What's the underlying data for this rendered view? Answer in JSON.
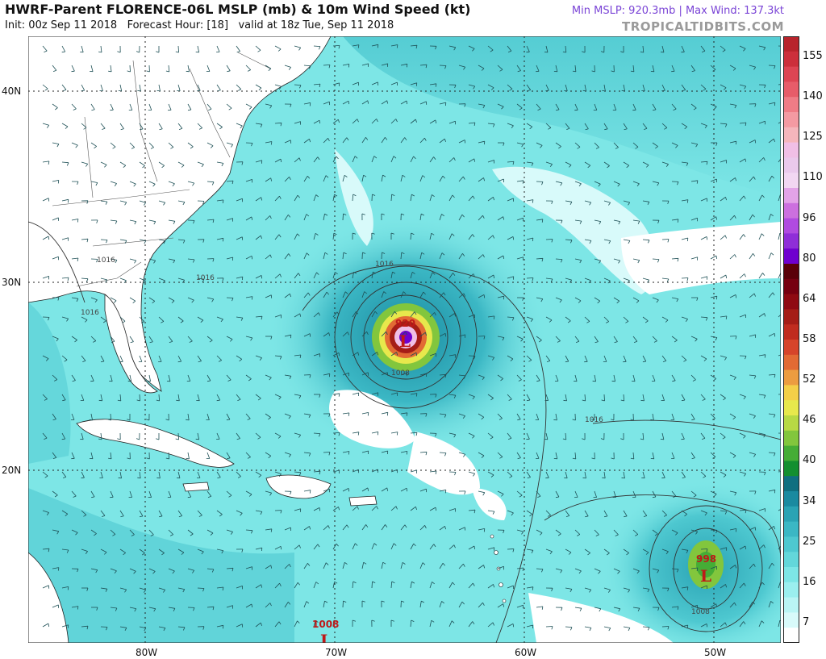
{
  "header": {
    "title": "HWRF-Parent FLORENCE-06L MSLP (mb) & 10m Wind Speed (kt)",
    "init": "Init: 00z Sep 11 2018",
    "forecast_hour": "Forecast Hour: [18]",
    "valid": "valid at 18z Tue, Sep 11 2018",
    "stats": "Min MSLP: 920.3mb | Max Wind: 137.3kt",
    "credit": "TROPICALTIDBITS.COM"
  },
  "axes": {
    "lat_labels": [
      "40N",
      "30N",
      "20N"
    ],
    "lon_labels": [
      "80W",
      "70W",
      "60W",
      "50W"
    ]
  },
  "storms": [
    {
      "name": "florence",
      "pressure": "920",
      "symbol": "L"
    },
    {
      "name": "east",
      "pressure": "998",
      "symbol": "L"
    },
    {
      "name": "south",
      "pressure": "1008",
      "symbol": "L"
    }
  ],
  "isobars": [
    "1016",
    "1016",
    "1016",
    "1016",
    "1008",
    "1016",
    "1008"
  ],
  "colorbar": {
    "labels": [
      "155",
      "140",
      "125",
      "110",
      "96",
      "80",
      "64",
      "58",
      "52",
      "46",
      "40",
      "34",
      "25",
      "16",
      "7"
    ],
    "colors": [
      "#b8242c",
      "#cc2f3b",
      "#dd4553",
      "#e75c69",
      "#ef7c86",
      "#f49aa2",
      "#f5b6bc",
      "#f0bfe6",
      "#eac9ec",
      "#f2d7f2",
      "#e3a3e8",
      "#cc70df",
      "#b04be0",
      "#8f2ed8",
      "#6f00cf",
      "#5a0008",
      "#760010",
      "#8f0a12",
      "#a51d17",
      "#c02c1f",
      "#d6442a",
      "#e26a34",
      "#ec9c40",
      "#f4cf48",
      "#e7e84c",
      "#b7d944",
      "#82c63d",
      "#45ad36",
      "#138f30",
      "#0f6f80",
      "#1a8aa0",
      "#2aa3b4",
      "#3bb7c4",
      "#4ec8d0",
      "#63d7da",
      "#7de6e6",
      "#9befef",
      "#baf5f5",
      "#d8fafa",
      "#ffffff"
    ]
  }
}
